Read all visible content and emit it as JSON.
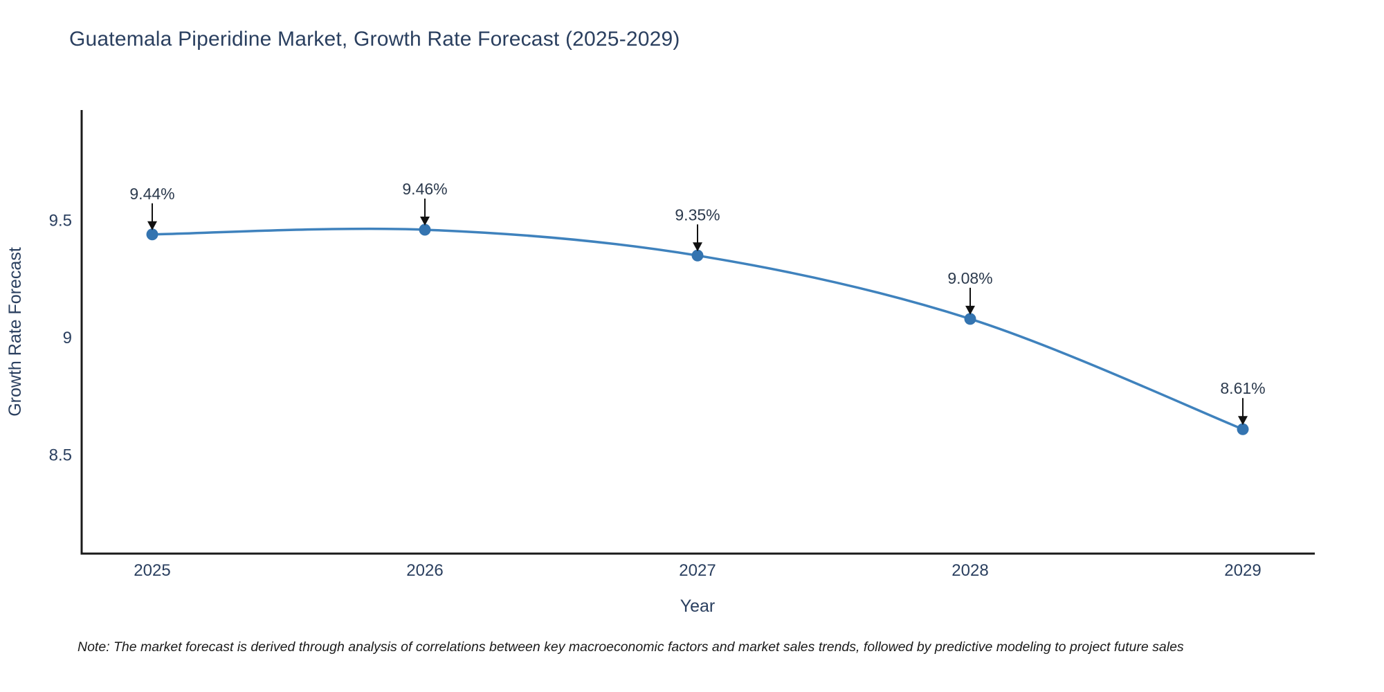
{
  "title": "Guatemala Piperidine Market, Growth Rate Forecast (2025-2029)",
  "note": "Note: The market forecast is derived through analysis of correlations between key macroeconomic factors and market sales trends, followed by predictive modeling to project future sales",
  "chart_data": {
    "type": "line",
    "title": "Guatemala Piperidine Market, Growth Rate Forecast (2025-2029)",
    "x": [
      "2025",
      "2026",
      "2027",
      "2028",
      "2029"
    ],
    "series": [
      {
        "name": "Growth Rate Forecast",
        "values": [
          9.44,
          9.46,
          9.35,
          9.08,
          8.61
        ]
      }
    ],
    "point_labels": [
      "9.44%",
      "9.46%",
      "9.35%",
      "9.08%",
      "8.61%"
    ],
    "xlabel": "Year",
    "ylabel": "Growth Rate Forecast",
    "yticks": [
      9.5,
      9,
      8.5
    ],
    "ytick_labels": [
      "9.5",
      "9",
      "8.5"
    ],
    "ylim": [
      8.08,
      9.97
    ],
    "grid": false,
    "legend_position": "none",
    "line_shape": "spline",
    "colors": {
      "line": "#3f82bd",
      "marker": "#3474b0",
      "axis": "#1a1a1a",
      "text": "#2a3f5f",
      "annotation_arrow": "#111111"
    }
  }
}
